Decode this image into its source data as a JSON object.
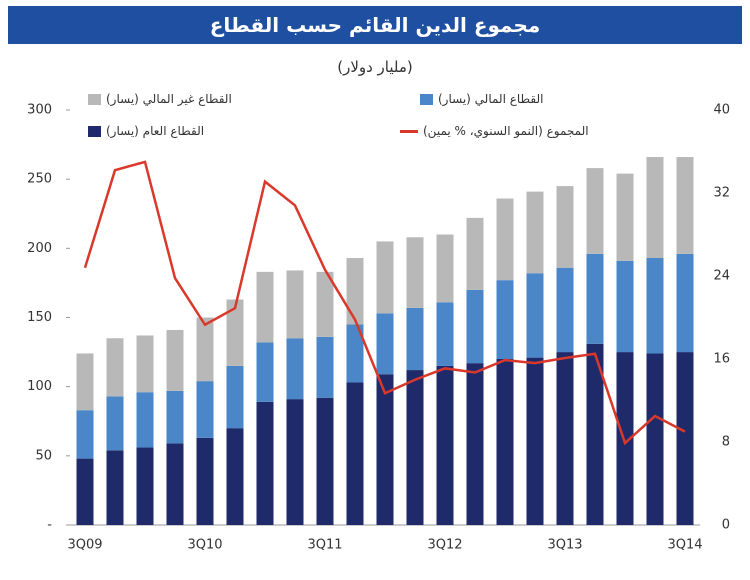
{
  "chart_data": {
    "type": "bar",
    "stacked": true,
    "title": "مجموع الدين القائم حسب القطاع",
    "subtitle": "(مليار دولار)",
    "categories": [
      "3Q09",
      null,
      null,
      null,
      "3Q10",
      null,
      null,
      null,
      "3Q11",
      null,
      null,
      null,
      "3Q12",
      null,
      null,
      null,
      "3Q13",
      null,
      null,
      null,
      "3Q14"
    ],
    "series": [
      {
        "name": "القطاع العام (يسار)",
        "color": "#1f2a6b",
        "values": [
          48,
          54,
          56,
          59,
          63,
          70,
          89,
          91,
          92,
          103,
          109,
          112,
          115,
          117,
          120,
          121,
          125,
          131,
          125,
          124,
          125
        ]
      },
      {
        "name": "القطاع المالي (يسار)",
        "color": "#4a86c8",
        "values": [
          35,
          39,
          40,
          38,
          41,
          45,
          43,
          44,
          44,
          42,
          44,
          45,
          46,
          53,
          57,
          61,
          61,
          65,
          66,
          69,
          71
        ]
      },
      {
        "name": "القطاع غير المالي (يسار)",
        "color": "#b8b8b8",
        "values": [
          41,
          42,
          41,
          44,
          46,
          48,
          51,
          49,
          47,
          48,
          52,
          51,
          49,
          52,
          59,
          59,
          59,
          62,
          63,
          73,
          70
        ]
      },
      {
        "name": "المجموع (النمو السنوي، % يمين)",
        "color": "#d9382b",
        "type": "line",
        "axis": "y2",
        "values": [
          24.8,
          34.2,
          35,
          23.8,
          19.3,
          20.9,
          33.1,
          30.8,
          24.6,
          19.8,
          12.7,
          14,
          15.1,
          14.7,
          15.9,
          15.6,
          16.1,
          16.5,
          7.9,
          10.5,
          9
        ]
      }
    ],
    "ylim": [
      0,
      300
    ],
    "yticks": [
      {
        "value": 0,
        "label": "-"
      },
      50,
      100,
      150,
      200,
      250,
      300
    ],
    "y2lim": [
      0,
      40
    ],
    "y2ticks": [
      0,
      8,
      16,
      24,
      32,
      40
    ],
    "grid": false
  }
}
